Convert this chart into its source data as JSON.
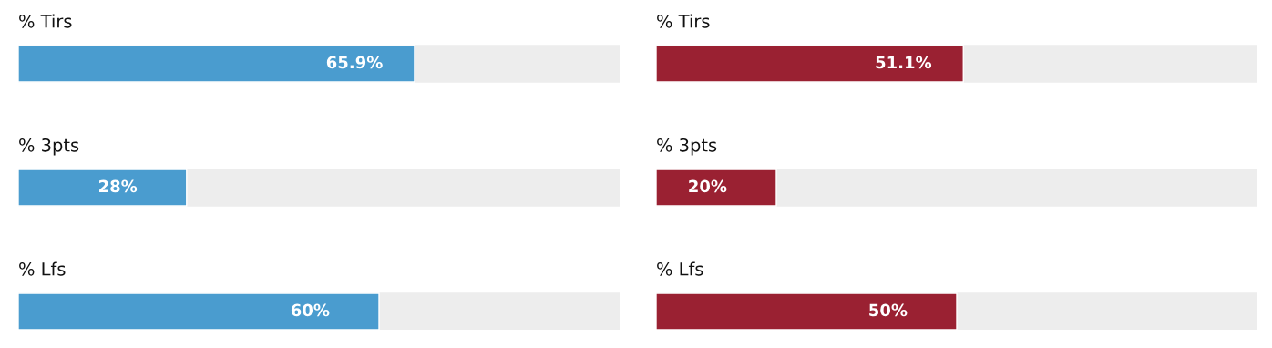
{
  "chart_data": [
    {
      "type": "bar",
      "orientation": "horizontal",
      "categories": [
        "% Tirs",
        "% 3pts",
        "% Lfs"
      ],
      "values": [
        65.9,
        28,
        60
      ],
      "value_labels": [
        "65.9%",
        "28%",
        "60%"
      ],
      "color": "#4a9ccf",
      "xlim": [
        0,
        100
      ],
      "tick_labels": "y"
    },
    {
      "type": "bar",
      "orientation": "horizontal",
      "categories": [
        "% Tirs",
        "% 3pts",
        "% Lfs"
      ],
      "values": [
        51.1,
        20,
        50
      ],
      "value_labels": [
        "51.1%",
        "20%",
        "50%"
      ],
      "color": "#9a2132",
      "xlim": [
        0,
        100
      ],
      "tick_labels": "y"
    }
  ]
}
